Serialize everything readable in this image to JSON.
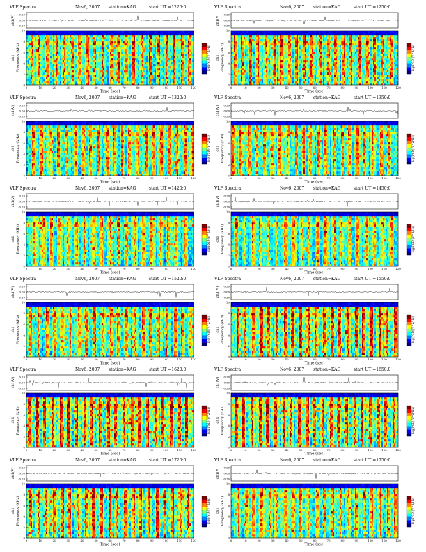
{
  "page": {
    "background": "#ffffff"
  },
  "common": {
    "label": "VLF Spectra",
    "date": "Nov6, 2007",
    "station": "station=KAG",
    "start_prefix": "start  UT  =",
    "waveform_ylabel": "ch1(V)",
    "waveform_ticks": [
      "0.20",
      "0.00",
      "-0.20"
    ],
    "spec_ylabel_ch": "ch1",
    "spec_ylabel": "Frequency  (kHz)",
    "freq_ticks": [
      "0",
      "2",
      "4",
      "6",
      "8",
      "10"
    ],
    "time_ticks": [
      "0",
      "10",
      "20",
      "30",
      "40",
      "50",
      "60",
      "70",
      "80",
      "90",
      "100",
      "110",
      "120"
    ],
    "xlabel": "Time  (sec)",
    "colorbar_label": "log(PSD)(V^2/Hz)",
    "colorbar_colors": [
      "#00007f",
      "#0000ff",
      "#0080ff",
      "#00ffff",
      "#80ff80",
      "#ffff00",
      "#ff8000",
      "#ff0000",
      "#800000"
    ]
  },
  "chart_data": [
    {
      "type": "heatmap",
      "label": "VLF Spectra",
      "date": "Nov6, 2007",
      "station": "station=KAG",
      "start_ut": "1220:0",
      "xlabel": "Time  (sec)",
      "ylabel": "Frequency  (kHz)",
      "xlim": [
        0,
        120
      ],
      "ylim": [
        0,
        10
      ],
      "activity": 1.0,
      "streaks": [
        4,
        9,
        15,
        22,
        27,
        33,
        38,
        44,
        49,
        55,
        61,
        66,
        72,
        77,
        83,
        89,
        95,
        101,
        106,
        112,
        117
      ]
    },
    {
      "type": "heatmap",
      "label": "VLF Spectra",
      "date": "Nov6, 2007",
      "station": "station=KAG",
      "start_ut": "1250:0",
      "xlabel": "Time  (sec)",
      "ylabel": "Frequency  (kHz)",
      "xlim": [
        0,
        120
      ],
      "ylim": [
        0,
        10
      ],
      "activity": 1.0,
      "streaks": [
        3,
        8,
        14,
        19,
        25,
        31,
        36,
        42,
        47,
        53,
        58,
        64,
        70,
        75,
        81,
        86,
        92,
        98,
        103,
        109,
        115
      ]
    },
    {
      "type": "heatmap",
      "label": "VLF Spectra",
      "date": "Nov6, 2007",
      "station": "station=KAG",
      "start_ut": "1320:0",
      "xlabel": "Time  (sec)",
      "ylabel": "Frequency  (kHz)",
      "xlim": [
        0,
        120
      ],
      "ylim": [
        0,
        10
      ],
      "activity": 0.9,
      "streaks": [
        5,
        11,
        17,
        23,
        29,
        35,
        41,
        46,
        52,
        58,
        63,
        69,
        74,
        80,
        86,
        91,
        97,
        103,
        108,
        114,
        119
      ]
    },
    {
      "type": "heatmap",
      "label": "VLF Spectra",
      "date": "Nov6, 2007",
      "station": "station=KAG",
      "start_ut": "1350:0",
      "xlabel": "Time  (sec)",
      "ylabel": "Frequency  (kHz)",
      "xlim": [
        0,
        120
      ],
      "ylim": [
        0,
        10
      ],
      "activity": 0.9,
      "streaks": [
        2,
        7,
        13,
        18,
        24,
        30,
        35,
        41,
        47,
        52,
        57,
        63,
        68,
        74,
        80,
        85,
        91,
        96,
        102,
        108,
        113
      ]
    },
    {
      "type": "heatmap",
      "label": "VLF Spectra",
      "date": "Nov6, 2007",
      "station": "station=KAG",
      "start_ut": "1420:0",
      "xlabel": "Time  (sec)",
      "ylabel": "Frequency  (kHz)",
      "xlim": [
        0,
        120
      ],
      "ylim": [
        0,
        10
      ],
      "activity": 0.85,
      "streaks": [
        6,
        12,
        18,
        24,
        30,
        36,
        42,
        48,
        54,
        60,
        66,
        72,
        78,
        84,
        90,
        96,
        102,
        108,
        114
      ]
    },
    {
      "type": "heatmap",
      "label": "VLF Spectra",
      "date": "Nov6, 2007",
      "station": "station=KAG",
      "start_ut": "1450:0",
      "xlabel": "Time  (sec)",
      "ylabel": "Frequency  (kHz)",
      "xlim": [
        0,
        120
      ],
      "ylim": [
        0,
        10
      ],
      "activity": 0.8,
      "streaks": [
        4,
        10,
        16,
        21,
        27,
        33,
        39,
        45,
        51,
        56,
        62,
        68,
        74,
        79,
        85,
        91,
        97,
        103,
        109,
        115
      ]
    },
    {
      "type": "heatmap",
      "label": "VLF Spectra",
      "date": "Nov6, 2007",
      "station": "station=KAG",
      "start_ut": "1520:0",
      "xlabel": "Time  (sec)",
      "ylabel": "Frequency  (kHz)",
      "xlim": [
        0,
        120
      ],
      "ylim": [
        0,
        10
      ],
      "activity": 0.9,
      "streaks": [
        3,
        9,
        15,
        20,
        26,
        32,
        38,
        43,
        49,
        55,
        61,
        66,
        72,
        78,
        84,
        89,
        95,
        101,
        107,
        112,
        118
      ]
    },
    {
      "type": "heatmap",
      "label": "VLF Spectra",
      "date": "Nov6, 2007",
      "station": "station=KAG",
      "start_ut": "1550:0",
      "xlabel": "Time  (sec)",
      "ylabel": "Frequency  (kHz)",
      "xlim": [
        0,
        120
      ],
      "ylim": [
        0,
        10
      ],
      "activity": 1.1,
      "streaks": [
        5,
        10,
        16,
        22,
        27,
        33,
        39,
        44,
        50,
        56,
        61,
        67,
        73,
        78,
        84,
        90,
        95,
        101,
        107,
        112,
        118
      ]
    },
    {
      "type": "heatmap",
      "label": "VLF Spectra",
      "date": "Nov6, 2007",
      "station": "station=KAG",
      "start_ut": "1620:0",
      "xlabel": "Time  (sec)",
      "ylabel": "Frequency  (kHz)",
      "xlim": [
        0,
        120
      ],
      "ylim": [
        0,
        10
      ],
      "activity": 1.15,
      "streaks": [
        2,
        8,
        13,
        19,
        25,
        30,
        36,
        42,
        47,
        53,
        59,
        64,
        70,
        76,
        81,
        87,
        93,
        98,
        104,
        110,
        115
      ]
    },
    {
      "type": "heatmap",
      "label": "VLF Spectra",
      "date": "Nov6, 2007",
      "station": "station=KAG",
      "start_ut": "1650:0",
      "xlabel": "Time  (sec)",
      "ylabel": "Frequency  (kHz)",
      "xlim": [
        0,
        120
      ],
      "ylim": [
        0,
        10
      ],
      "activity": 1.1,
      "streaks": [
        4,
        9,
        15,
        21,
        26,
        32,
        38,
        43,
        49,
        55,
        60,
        66,
        72,
        77,
        83,
        89,
        94,
        100,
        106,
        111,
        117
      ]
    },
    {
      "type": "heatmap",
      "label": "VLF Spectra",
      "date": "Nov6, 2007",
      "station": "station=KAG",
      "start_ut": "1720:0",
      "xlabel": "Time  (sec)",
      "ylabel": "Frequency  (kHz)",
      "xlim": [
        0,
        120
      ],
      "ylim": [
        0,
        10
      ],
      "activity": 1.05,
      "streaks": [
        3,
        9,
        14,
        20,
        26,
        31,
        37,
        43,
        48,
        54,
        60,
        65,
        71,
        77,
        82,
        88,
        94,
        99,
        105,
        111,
        116
      ]
    },
    {
      "type": "heatmap",
      "label": "VLF Spectra",
      "date": "Nov6, 2007",
      "station": "station=KAG",
      "start_ut": "1750:0",
      "xlabel": "Time  (sec)",
      "ylabel": "Frequency  (kHz)",
      "xlim": [
        0,
        120
      ],
      "ylim": [
        0,
        10
      ],
      "activity": 0.9,
      "streaks": [
        5,
        11,
        16,
        22,
        28,
        33,
        39,
        45,
        50,
        56,
        62,
        67,
        73,
        79,
        84,
        90,
        96,
        101,
        107,
        113,
        118
      ]
    }
  ]
}
